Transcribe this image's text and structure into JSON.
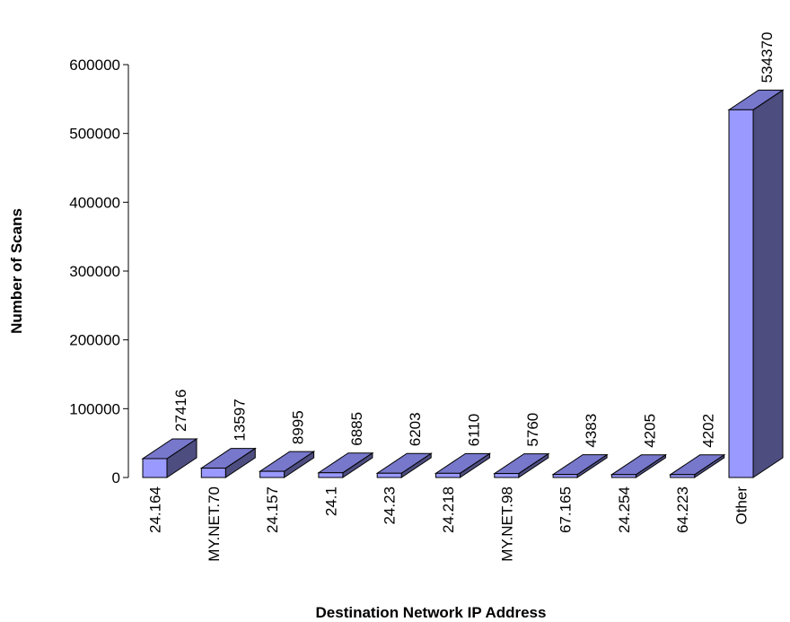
{
  "chart_data": {
    "type": "bar",
    "title": "",
    "xlabel": "Destination Network IP Address",
    "ylabel": "Number of Scans",
    "ylim": [
      0,
      600000
    ],
    "yticks": [
      0,
      100000,
      200000,
      300000,
      400000,
      500000,
      600000
    ],
    "yticks_labels": [
      "0",
      "100000",
      "200000",
      "300000",
      "400000",
      "500000",
      "600000"
    ],
    "categories": [
      "24.164",
      "MY.NET.70",
      "24.157",
      "24.1",
      "24.23",
      "24.218",
      "MY.NET.98",
      "67.165",
      "24.254",
      "64.223",
      "Other"
    ],
    "values": [
      27416,
      13597,
      8995,
      6885,
      6203,
      6110,
      5760,
      4383,
      4205,
      4202,
      534370
    ],
    "value_labels": [
      "27416",
      "13597",
      "8995",
      "6885",
      "6203",
      "6110",
      "5760",
      "4383",
      "4205",
      "4202",
      "534370"
    ],
    "grid": false,
    "legend": "none",
    "style": "3d",
    "colors": {
      "front": "#9999ff",
      "top": "#7777cc",
      "side": "#4d4d80",
      "edge": "#000000"
    }
  }
}
